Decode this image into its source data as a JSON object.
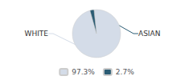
{
  "chart_data": {
    "type": "pie",
    "categories": [
      "WHITE",
      "ASIAN"
    ],
    "values": [
      97.3,
      2.7
    ],
    "value_labels": [
      "97.3%",
      "2.7%"
    ],
    "colors": [
      "#d4dce8",
      "#2b5c74"
    ],
    "legend": "bottom"
  }
}
